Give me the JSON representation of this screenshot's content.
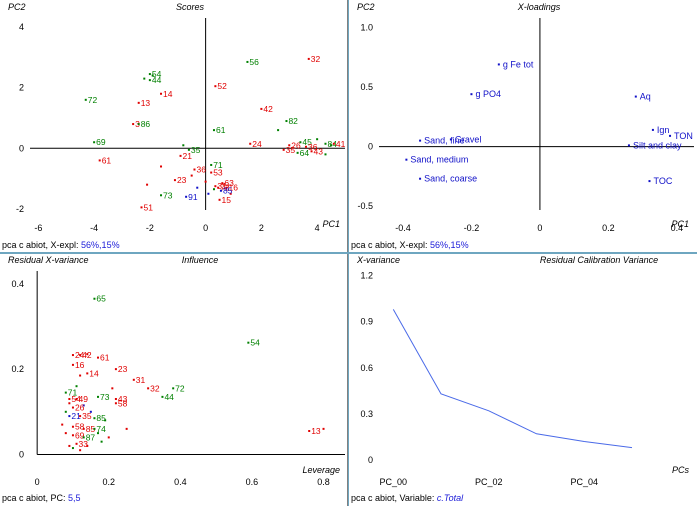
{
  "colors": {
    "red": "#e00000",
    "green": "#008000",
    "blue": "#1010c8",
    "line": "#4a6ae8",
    "axis": "#000000"
  },
  "chart_data": [
    {
      "type": "scatter",
      "title": "Scores",
      "ylabel": "PC2",
      "xlabel": "PC1",
      "xlim": [
        -6.3,
        5.0
      ],
      "ylim": [
        -2.3,
        4.3
      ],
      "xticks": [
        -6,
        -4,
        -2,
        0,
        2,
        4
      ],
      "yticks": [
        -2,
        0,
        2,
        4
      ],
      "status": {
        "prefix": "pca  c abiot, X-expl: ",
        "highlight": "56%,15%"
      },
      "points": [
        {
          "x": 3.7,
          "y": 2.95,
          "label": "32",
          "color": "red"
        },
        {
          "x": 1.5,
          "y": 2.85,
          "label": "56",
          "color": "green"
        },
        {
          "x": -2.0,
          "y": 2.45,
          "label": "54",
          "color": "green"
        },
        {
          "x": -2.0,
          "y": 2.25,
          "label": "44",
          "color": "green"
        },
        {
          "x": 0.35,
          "y": 2.05,
          "label": "52",
          "color": "red"
        },
        {
          "x": -1.6,
          "y": 1.8,
          "label": "14",
          "color": "red"
        },
        {
          "x": -4.3,
          "y": 1.6,
          "label": "72",
          "color": "green"
        },
        {
          "x": -2.4,
          "y": 1.5,
          "label": "13",
          "color": "red"
        },
        {
          "x": 2.0,
          "y": 1.3,
          "label": "42",
          "color": "red"
        },
        {
          "x": -2.6,
          "y": 0.8,
          "label": "3",
          "color": "red"
        },
        {
          "x": -2.4,
          "y": 0.8,
          "label": "86",
          "color": "green"
        },
        {
          "x": 0.3,
          "y": 0.6,
          "label": "61",
          "color": "green"
        },
        {
          "x": 2.9,
          "y": 0.9,
          "label": "82",
          "color": "green"
        },
        {
          "x": -4.0,
          "y": 0.2,
          "label": "69",
          "color": "green"
        },
        {
          "x": 1.6,
          "y": 0.15,
          "label": "24",
          "color": "red"
        },
        {
          "x": 3.4,
          "y": 0.2,
          "label": "45",
          "color": "green"
        },
        {
          "x": 4.3,
          "y": 0.15,
          "label": "84",
          "color": "green"
        },
        {
          "x": 4.6,
          "y": 0.15,
          "label": "41",
          "color": "red"
        },
        {
          "x": 3.0,
          "y": 0.1,
          "label": "26",
          "color": "red"
        },
        {
          "x": 3.6,
          "y": 0.05,
          "label": "36",
          "color": "red"
        },
        {
          "x": 2.8,
          "y": -0.05,
          "label": "35",
          "color": "red"
        },
        {
          "x": 3.3,
          "y": -0.15,
          "label": "64",
          "color": "green"
        },
        {
          "x": 3.8,
          "y": -0.1,
          "label": "43",
          "color": "red"
        },
        {
          "x": -3.8,
          "y": -0.4,
          "label": "61",
          "color": "red"
        },
        {
          "x": -0.6,
          "y": -0.05,
          "label": "35",
          "color": "green"
        },
        {
          "x": -0.9,
          "y": -0.25,
          "label": "21",
          "color": "red"
        },
        {
          "x": 0.2,
          "y": -0.55,
          "label": "71",
          "color": "green"
        },
        {
          "x": -0.4,
          "y": -0.7,
          "label": "36",
          "color": "red"
        },
        {
          "x": 0.2,
          "y": -0.8,
          "label": "53",
          "color": "red"
        },
        {
          "x": -1.1,
          "y": -1.05,
          "label": "23",
          "color": "red"
        },
        {
          "x": 0.6,
          "y": -1.15,
          "label": "63",
          "color": "red"
        },
        {
          "x": 0.35,
          "y": -1.25,
          "label": "31",
          "color": "red"
        },
        {
          "x": 0.45,
          "y": -1.3,
          "label": "73",
          "color": "red"
        },
        {
          "x": 0.75,
          "y": -1.3,
          "label": "16",
          "color": "red"
        },
        {
          "x": 0.55,
          "y": -1.4,
          "label": "85",
          "color": "blue"
        },
        {
          "x": -1.6,
          "y": -1.55,
          "label": "73",
          "color": "green"
        },
        {
          "x": -0.7,
          "y": -1.6,
          "label": "91",
          "color": "blue"
        },
        {
          "x": 0.5,
          "y": -1.7,
          "label": "15",
          "color": "red"
        },
        {
          "x": -2.3,
          "y": -1.95,
          "label": "51",
          "color": "red"
        }
      ],
      "dots": [
        {
          "x": -2.2,
          "y": 2.3,
          "color": "green"
        },
        {
          "x": -1.9,
          "y": 2.4,
          "color": "green"
        },
        {
          "x": 4.5,
          "y": 0.1,
          "color": "green"
        },
        {
          "x": 4.3,
          "y": -0.2,
          "color": "green"
        },
        {
          "x": -0.3,
          "y": -1.3,
          "color": "blue"
        },
        {
          "x": 0.1,
          "y": -1.5,
          "color": "blue"
        },
        {
          "x": 0.3,
          "y": -1.35,
          "color": "green"
        },
        {
          "x": -0.5,
          "y": -0.9,
          "color": "red"
        },
        {
          "x": -1.6,
          "y": -0.6,
          "color": "red"
        },
        {
          "x": -0.8,
          "y": 0.1,
          "color": "green"
        },
        {
          "x": 2.6,
          "y": 0.6,
          "color": "green"
        },
        {
          "x": 4.0,
          "y": 0.3,
          "color": "green"
        },
        {
          "x": -2.1,
          "y": -1.2,
          "color": "red"
        },
        {
          "x": 0.0,
          "y": -1.1,
          "color": "red"
        },
        {
          "x": 0.9,
          "y": -1.5,
          "color": "red"
        }
      ]
    },
    {
      "type": "scatter",
      "title": "X-loadings",
      "ylabel": "PC2",
      "xlabel": "PC1",
      "xlim": [
        -0.47,
        0.45
      ],
      "ylim": [
        -0.6,
        1.08
      ],
      "xticks": [
        -0.4,
        -0.2,
        0,
        0.2,
        0.4
      ],
      "yticks": [
        -0.5,
        0,
        0.5,
        1.0
      ],
      "ytick_labels": [
        "-0.5",
        "0",
        "0.5",
        "1.0"
      ],
      "status": {
        "prefix": "pca  c abiot, X-expl: ",
        "highlight": "56%,15%"
      },
      "points": [
        {
          "x": -0.12,
          "y": 0.69,
          "label": "g Fe tot"
        },
        {
          "x": -0.2,
          "y": 0.44,
          "label": "g PO4"
        },
        {
          "x": 0.28,
          "y": 0.42,
          "label": "Aq"
        },
        {
          "x": 0.33,
          "y": 0.14,
          "label": "Ign"
        },
        {
          "x": 0.38,
          "y": 0.09,
          "label": "TON"
        },
        {
          "x": 0.26,
          "y": 0.01,
          "label": "Silt and clay"
        },
        {
          "x": -0.35,
          "y": 0.05,
          "label": "Sand, fine"
        },
        {
          "x": -0.26,
          "y": 0.06,
          "label": "Gravel"
        },
        {
          "x": -0.39,
          "y": -0.11,
          "label": "Sand, medium"
        },
        {
          "x": -0.35,
          "y": -0.27,
          "label": "Sand, coarse"
        },
        {
          "x": 0.32,
          "y": -0.29,
          "label": "TOC"
        }
      ]
    },
    {
      "type": "scatter",
      "title": "Influence",
      "ylabel": "Residual X-variance",
      "xlabel": "Leverage",
      "xlim": [
        -0.02,
        0.86
      ],
      "ylim": [
        -0.02,
        0.43
      ],
      "xticks": [
        0,
        0.2,
        0.4,
        0.6,
        0.8
      ],
      "yticks": [
        0,
        0.2,
        0.4
      ],
      "status": {
        "prefix": "pca  c abiot, PC: ",
        "highlight": "5,5"
      },
      "points": [
        {
          "x": 0.16,
          "y": 0.365,
          "label": "65",
          "color": "green"
        },
        {
          "x": 0.59,
          "y": 0.262,
          "label": "54",
          "color": "green"
        },
        {
          "x": 0.1,
          "y": 0.233,
          "label": "24",
          "color": "red"
        },
        {
          "x": 0.12,
          "y": 0.233,
          "label": "42",
          "color": "red"
        },
        {
          "x": 0.17,
          "y": 0.227,
          "label": "61",
          "color": "red"
        },
        {
          "x": 0.1,
          "y": 0.21,
          "label": "16",
          "color": "red"
        },
        {
          "x": 0.22,
          "y": 0.2,
          "label": "23",
          "color": "red"
        },
        {
          "x": 0.14,
          "y": 0.19,
          "label": "14",
          "color": "red"
        },
        {
          "x": 0.38,
          "y": 0.155,
          "label": "72",
          "color": "green"
        },
        {
          "x": 0.27,
          "y": 0.175,
          "label": "31",
          "color": "red"
        },
        {
          "x": 0.31,
          "y": 0.155,
          "label": "32",
          "color": "red"
        },
        {
          "x": 0.08,
          "y": 0.145,
          "label": "71",
          "color": "green"
        },
        {
          "x": 0.17,
          "y": 0.135,
          "label": "73",
          "color": "green"
        },
        {
          "x": 0.35,
          "y": 0.135,
          "label": "44",
          "color": "green"
        },
        {
          "x": 0.76,
          "y": 0.055,
          "label": "13",
          "color": "red"
        },
        {
          "x": 0.09,
          "y": 0.13,
          "label": "54",
          "color": "red"
        },
        {
          "x": 0.11,
          "y": 0.13,
          "label": "49",
          "color": "red"
        },
        {
          "x": 0.22,
          "y": 0.13,
          "label": "43",
          "color": "red"
        },
        {
          "x": 0.22,
          "y": 0.12,
          "label": "58",
          "color": "red"
        },
        {
          "x": 0.1,
          "y": 0.11,
          "label": "26",
          "color": "red"
        },
        {
          "x": 0.09,
          "y": 0.09,
          "label": "21",
          "color": "blue"
        },
        {
          "x": 0.12,
          "y": 0.09,
          "label": "35",
          "color": "red"
        },
        {
          "x": 0.16,
          "y": 0.085,
          "label": "85",
          "color": "green"
        },
        {
          "x": 0.1,
          "y": 0.065,
          "label": "58",
          "color": "red"
        },
        {
          "x": 0.13,
          "y": 0.06,
          "label": "85",
          "color": "red"
        },
        {
          "x": 0.16,
          "y": 0.06,
          "label": "74",
          "color": "green"
        },
        {
          "x": 0.1,
          "y": 0.045,
          "label": "69",
          "color": "red"
        },
        {
          "x": 0.13,
          "y": 0.04,
          "label": "87",
          "color": "green"
        },
        {
          "x": 0.11,
          "y": 0.025,
          "label": "33",
          "color": "red"
        }
      ],
      "dots": [
        {
          "x": 0.08,
          "y": 0.05,
          "color": "red"
        },
        {
          "x": 0.09,
          "y": 0.02,
          "color": "red"
        },
        {
          "x": 0.1,
          "y": 0.015,
          "color": "green"
        },
        {
          "x": 0.12,
          "y": 0.01,
          "color": "red"
        },
        {
          "x": 0.14,
          "y": 0.02,
          "color": "red"
        },
        {
          "x": 0.18,
          "y": 0.03,
          "color": "green"
        },
        {
          "x": 0.2,
          "y": 0.04,
          "color": "red"
        },
        {
          "x": 0.25,
          "y": 0.06,
          "color": "red"
        },
        {
          "x": 0.08,
          "y": 0.1,
          "color": "green"
        },
        {
          "x": 0.09,
          "y": 0.12,
          "color": "red"
        },
        {
          "x": 0.11,
          "y": 0.16,
          "color": "green"
        },
        {
          "x": 0.13,
          "y": 0.115,
          "color": "blue"
        },
        {
          "x": 0.15,
          "y": 0.1,
          "color": "blue"
        },
        {
          "x": 0.07,
          "y": 0.07,
          "color": "red"
        },
        {
          "x": 0.19,
          "y": 0.08,
          "color": "green"
        },
        {
          "x": 0.8,
          "y": 0.06,
          "color": "red"
        },
        {
          "x": 0.21,
          "y": 0.155,
          "color": "red"
        },
        {
          "x": 0.14,
          "y": 0.235,
          "color": "red"
        },
        {
          "x": 0.12,
          "y": 0.185,
          "color": "red"
        },
        {
          "x": 0.17,
          "y": 0.05,
          "color": "green"
        }
      ]
    },
    {
      "type": "line",
      "title": "Residual Calibration Variance",
      "ylabel": "X-variance",
      "xlabel": "PCs",
      "xlim": [
        -0.3,
        6.3
      ],
      "ylim": [
        -0.02,
        1.23
      ],
      "xticks": [
        0,
        2,
        4
      ],
      "xtick_labels": [
        "PC_00",
        "PC_02",
        "PC_04"
      ],
      "yticks": [
        0,
        0.3,
        0.6,
        0.9,
        1.2
      ],
      "status": {
        "prefix": "pca  c abiot, Variable: ",
        "highlight": "c.Total"
      },
      "series": [
        {
          "x": [
            0,
            1,
            2,
            3,
            4,
            5
          ],
          "y": [
            0.98,
            0.43,
            0.32,
            0.17,
            0.12,
            0.08
          ]
        }
      ]
    }
  ]
}
